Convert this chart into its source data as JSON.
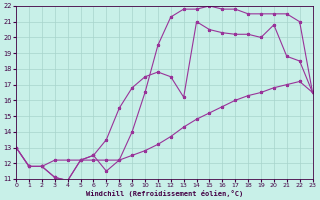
{
  "xlabel": "Windchill (Refroidissement éolien,°C)",
  "bg_color": "#c8f0e8",
  "grid_color": "#a8d4cc",
  "line_color": "#993399",
  "xlim": [
    0,
    23
  ],
  "ylim": [
    11,
    22
  ],
  "xticks": [
    0,
    1,
    2,
    3,
    4,
    5,
    6,
    7,
    8,
    9,
    10,
    11,
    12,
    13,
    14,
    15,
    16,
    17,
    18,
    19,
    20,
    21,
    22,
    23
  ],
  "yticks": [
    11,
    12,
    13,
    14,
    15,
    16,
    17,
    18,
    19,
    20,
    21,
    22
  ],
  "curve1_x": [
    0,
    1,
    2,
    3,
    4,
    5,
    6,
    7,
    8,
    9,
    10,
    11,
    12,
    13,
    14,
    15,
    16,
    17,
    18,
    19,
    20,
    21,
    22,
    23
  ],
  "curve1_y": [
    13.0,
    11.8,
    11.8,
    12.2,
    12.2,
    12.2,
    12.2,
    12.2,
    12.2,
    12.5,
    12.8,
    13.2,
    13.7,
    14.3,
    14.8,
    15.2,
    15.6,
    16.0,
    16.3,
    16.5,
    16.8,
    17.0,
    17.2,
    16.5
  ],
  "curve2_x": [
    0,
    1,
    2,
    3,
    4,
    5,
    6,
    7,
    8,
    9,
    10,
    11,
    12,
    13,
    14,
    15,
    16,
    17,
    18,
    19,
    20,
    21,
    22,
    23
  ],
  "curve2_y": [
    13.0,
    11.8,
    11.8,
    11.1,
    10.9,
    12.2,
    12.5,
    13.5,
    15.5,
    16.8,
    17.5,
    17.8,
    17.5,
    16.2,
    21.0,
    20.5,
    20.3,
    20.2,
    20.2,
    20.0,
    20.8,
    18.8,
    18.5,
    16.5
  ],
  "curve3_x": [
    0,
    1,
    2,
    3,
    4,
    5,
    6,
    7,
    8,
    9,
    10,
    11,
    12,
    13,
    14,
    15,
    16,
    17,
    18,
    19,
    20,
    21,
    22,
    23
  ],
  "curve3_y": [
    13.0,
    11.8,
    11.8,
    11.1,
    10.9,
    12.2,
    12.5,
    11.5,
    12.2,
    14.0,
    16.5,
    19.5,
    21.3,
    21.8,
    21.8,
    22.0,
    21.8,
    21.8,
    21.5,
    21.5,
    21.5,
    21.5,
    21.0,
    16.5
  ]
}
